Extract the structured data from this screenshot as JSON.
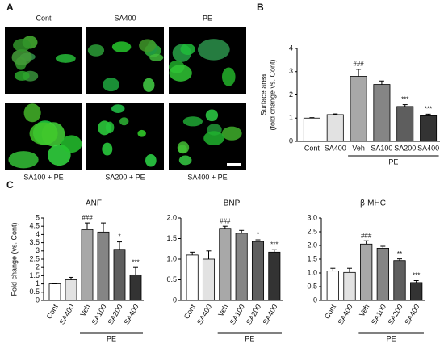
{
  "figure": {
    "panels": [
      "A",
      "B",
      "C"
    ],
    "images": [
      {
        "label": "Cont"
      },
      {
        "label": "SA400"
      },
      {
        "label": "PE"
      },
      {
        "label": "SA100 + PE"
      },
      {
        "label": "SA200 + PE"
      },
      {
        "label": "SA400 + PE"
      }
    ]
  },
  "chart_data": [
    {
      "type": "bar",
      "y_label": [
        "Surface area",
        "(fold change vs. Cont)"
      ],
      "categories": [
        "Cont",
        "SA400",
        "Veh",
        "SA100",
        "SA200",
        "SA400"
      ],
      "values": [
        1.0,
        1.15,
        2.8,
        2.45,
        1.5,
        1.1
      ],
      "errors": [
        0.02,
        0.03,
        0.3,
        0.15,
        0.08,
        0.07
      ],
      "marks": [
        null,
        null,
        "###",
        null,
        "***",
        "***"
      ],
      "colors": [
        "#ffffff",
        "#e2e2e2",
        "#a8a8a8",
        "#858585",
        "#5e5e5e",
        "#333333"
      ],
      "group_label": "PE",
      "group_members": [
        false,
        false,
        true,
        true,
        true,
        true
      ],
      "ylim": [
        0,
        4
      ],
      "yticks": [
        0,
        1,
        2,
        3,
        4
      ],
      "rotate_labels": false
    },
    {
      "type": "bar",
      "title": "ANF",
      "y_label": [
        "Fold change (vs. Cont)"
      ],
      "categories": [
        "Cont",
        "SA400",
        "Veh",
        "SA100",
        "SA200",
        "SA400"
      ],
      "values": [
        1.0,
        1.25,
        4.3,
        4.15,
        3.1,
        1.55
      ],
      "errors": [
        0.03,
        0.15,
        0.4,
        0.55,
        0.45,
        0.45
      ],
      "marks": [
        null,
        null,
        "###",
        null,
        "*",
        "***"
      ],
      "colors": [
        "#ffffff",
        "#e2e2e2",
        "#a8a8a8",
        "#858585",
        "#5e5e5e",
        "#333333"
      ],
      "group_label": "PE",
      "group_members": [
        false,
        false,
        true,
        true,
        true,
        true
      ],
      "ylim": [
        0,
        5
      ],
      "yticks": [
        0,
        0.5,
        1,
        1.5,
        2,
        2.5,
        3,
        3.5,
        4,
        4.5,
        5
      ],
      "rotate_labels": true
    },
    {
      "type": "bar",
      "title": "BNP",
      "categories": [
        "Cont",
        "SA400",
        "Veh",
        "SA100",
        "SA200",
        "SA400"
      ],
      "values": [
        1.1,
        1.0,
        1.75,
        1.63,
        1.43,
        1.17
      ],
      "errors": [
        0.07,
        0.2,
        0.05,
        0.07,
        0.04,
        0.06
      ],
      "marks": [
        null,
        null,
        "###",
        null,
        "*",
        "***"
      ],
      "colors": [
        "#ffffff",
        "#e2e2e2",
        "#a8a8a8",
        "#858585",
        "#5e5e5e",
        "#333333"
      ],
      "group_label": "PE",
      "group_members": [
        false,
        false,
        true,
        true,
        true,
        true
      ],
      "ylim": [
        0,
        2
      ],
      "yticks": [
        0,
        0.5,
        {
          "value": 1,
          "label": "1.0"
        },
        1.5,
        {
          "value": 2,
          "label": "2.0"
        }
      ],
      "rotate_labels": true
    },
    {
      "type": "bar",
      "title": "β-MHC",
      "categories": [
        "Cont",
        "SA400",
        "Veh",
        "SA100",
        "SA200",
        "SA400"
      ],
      "values": [
        1.07,
        1.02,
        2.05,
        1.9,
        1.45,
        0.65
      ],
      "errors": [
        0.1,
        0.15,
        0.12,
        0.07,
        0.06,
        0.07
      ],
      "marks": [
        null,
        null,
        "###",
        null,
        "**",
        "***"
      ],
      "colors": [
        "#ffffff",
        "#e2e2e2",
        "#a8a8a8",
        "#858585",
        "#5e5e5e",
        "#333333"
      ],
      "group_label": "PE",
      "group_members": [
        false,
        false,
        true,
        true,
        true,
        true
      ],
      "ylim": [
        0,
        3
      ],
      "yticks": [
        0,
        0.5,
        {
          "value": 1,
          "label": "1.0"
        },
        1.5,
        {
          "value": 2,
          "label": "2.0"
        },
        2.5,
        {
          "value": 3,
          "label": "3.0"
        }
      ],
      "rotate_labels": true
    }
  ]
}
